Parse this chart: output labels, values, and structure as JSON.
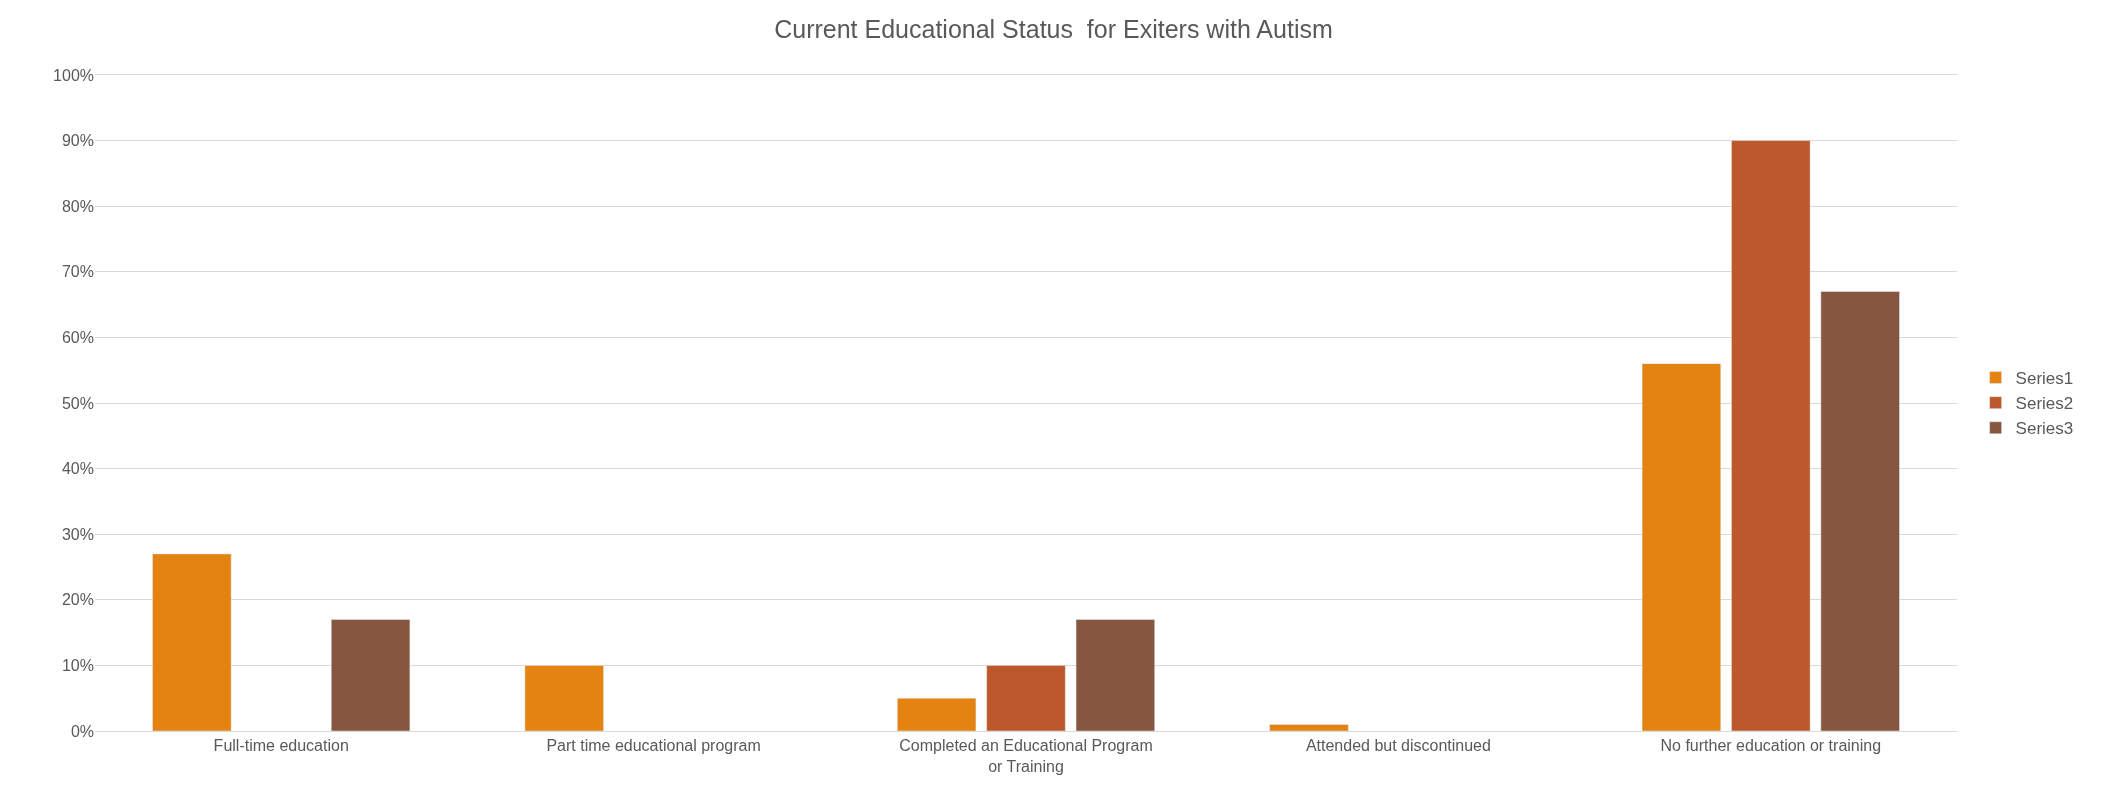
{
  "chart_data": {
    "type": "bar",
    "title": "Current Educational Status  for Exiters with Autism",
    "categories": [
      "Full-time education",
      "Part time educational program",
      "Completed an Educational Program or Training",
      "Attended but discontinued",
      "No further education or training"
    ],
    "series": [
      {
        "name": "Series1",
        "color": "#e48312",
        "values": [
          27,
          10,
          5,
          1,
          56
        ]
      },
      {
        "name": "Series2",
        "color": "#bd582c",
        "values": [
          null,
          null,
          10,
          null,
          90
        ]
      },
      {
        "name": "Series3",
        "color": "#865640",
        "values": [
          17,
          null,
          17,
          null,
          67
        ]
      }
    ],
    "ylim": [
      0,
      100
    ],
    "yticks": [
      {
        "value": 0,
        "label": "0%"
      },
      {
        "value": 10,
        "label": "10%"
      },
      {
        "value": 20,
        "label": "20%"
      },
      {
        "value": 30,
        "label": "30%"
      },
      {
        "value": 40,
        "label": "40%"
      },
      {
        "value": 50,
        "label": "50%"
      },
      {
        "value": 60,
        "label": "60%"
      },
      {
        "value": 70,
        "label": "70%"
      },
      {
        "value": 80,
        "label": "80%"
      },
      {
        "value": 90,
        "label": "90%"
      },
      {
        "value": 100,
        "label": "100%"
      }
    ],
    "grid": "y",
    "legend": "right"
  }
}
